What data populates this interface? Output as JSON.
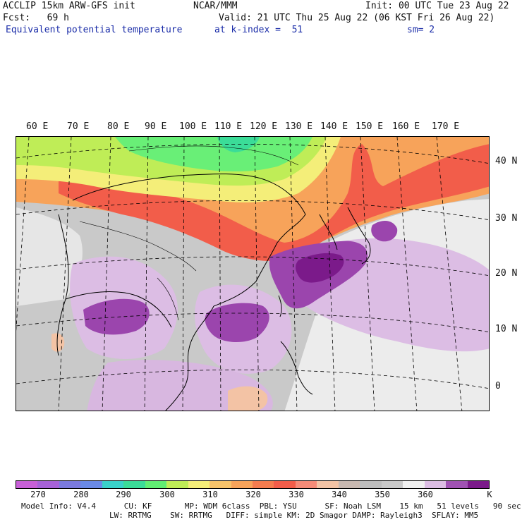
{
  "header": {
    "model_line": "ACCLIP 15km ARW-GFS init",
    "center": "NCAR/MMM",
    "init": "Init: 00 UTC Tue 23 Aug 22",
    "fcst": "Fcst:   69 h",
    "valid": "Valid: 21 UTC Thu 25 Aug 22 (06 KST Fri 26 Aug 22)",
    "field": "Equivalent potential temperature",
    "level": "at k-index =  51",
    "smooth": "sm= 2"
  },
  "map": {
    "lon_labels": [
      "60 E",
      "70 E",
      "80 E",
      "90 E",
      "100 E",
      "110 E",
      "120 E",
      "130 E",
      "140 E",
      "150 E",
      "160 E",
      "170 E"
    ],
    "lat_labels": [
      "40 N",
      "30 N",
      "20 N",
      "10 N",
      "0"
    ],
    "regions": {
      "cold_north": "#69ef77",
      "cool_yellowgreen": "#bfed57",
      "mild_yellow": "#f4ee79",
      "warm_orange": "#f7b35a",
      "hot_red": "#f25d4a",
      "gray_350": "#bdbdbd",
      "white_360": "#f0f0f0",
      "lilac_365": "#dcbde4",
      "purple_370": "#9b45ad",
      "dark_purple_375": "#7b1a8a",
      "peach_340": "#f3c3a5"
    }
  },
  "colorbar": {
    "colors": [
      "#c860d8",
      "#a762d8",
      "#7b7adf",
      "#6a8ae6",
      "#3ad1c9",
      "#3bdc98",
      "#61ee73",
      "#bfed57",
      "#f4ee79",
      "#f7c36a",
      "#f7a35a",
      "#f47c4f",
      "#f25d4a",
      "#f58b78",
      "#f3c3a5",
      "#c8b8b0",
      "#bdbdbd",
      "#c9c9c9",
      "#f0f0f0",
      "#dcbde4",
      "#a052b3",
      "#7b1a8a"
    ],
    "ticks": [
      "270",
      "280",
      "290",
      "300",
      "310",
      "320",
      "330",
      "340",
      "350",
      "360"
    ],
    "unit": "K"
  },
  "footer": {
    "line1": "Model Info: V4.4      CU: KF       MP: WDM 6class  PBL: YSU      SF: Noah LSM    15 km   51 levels   90 sec",
    "line2": "LW: RRTMG    SW: RRTMG   DIFF: simple KM: 2D Smagor DAMP: Rayleigh3  SFLAY: MM5"
  }
}
